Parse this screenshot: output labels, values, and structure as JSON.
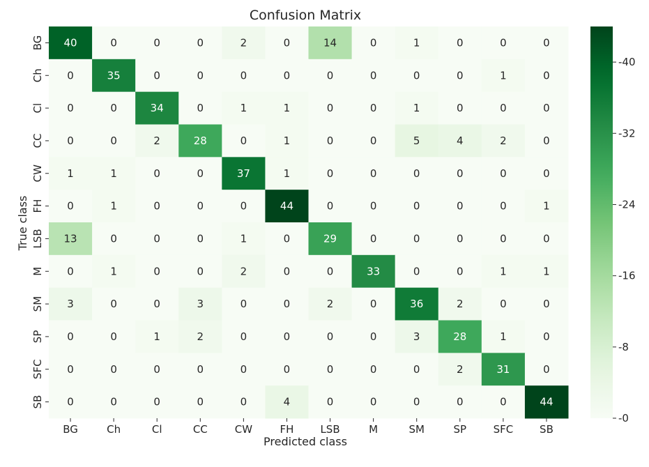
{
  "chart_data": {
    "type": "heatmap",
    "title": "Confusion Matrix",
    "xlabel": "Predicted class",
    "ylabel": "True class",
    "x_categories": [
      "BG",
      "Ch",
      "Cl",
      "CC",
      "CW",
      "FH",
      "LSB",
      "M",
      "SM",
      "SP",
      "SFC",
      "SB"
    ],
    "y_categories": [
      "BG",
      "Ch",
      "Cl",
      "CC",
      "CW",
      "FH",
      "LSB",
      "M",
      "SM",
      "SP",
      "SFC",
      "SB"
    ],
    "values": [
      [
        40,
        0,
        0,
        0,
        2,
        0,
        14,
        0,
        1,
        0,
        0,
        0
      ],
      [
        0,
        35,
        0,
        0,
        0,
        0,
        0,
        0,
        0,
        0,
        1,
        0
      ],
      [
        0,
        0,
        34,
        0,
        1,
        1,
        0,
        0,
        1,
        0,
        0,
        0
      ],
      [
        0,
        0,
        2,
        28,
        0,
        1,
        0,
        0,
        5,
        4,
        2,
        0
      ],
      [
        1,
        1,
        0,
        0,
        37,
        1,
        0,
        0,
        0,
        0,
        0,
        0
      ],
      [
        0,
        1,
        0,
        0,
        0,
        44,
        0,
        0,
        0,
        0,
        0,
        1
      ],
      [
        13,
        0,
        0,
        0,
        1,
        0,
        29,
        0,
        0,
        0,
        0,
        0
      ],
      [
        0,
        1,
        0,
        0,
        2,
        0,
        0,
        33,
        0,
        0,
        1,
        1
      ],
      [
        3,
        0,
        0,
        3,
        0,
        0,
        2,
        0,
        36,
        2,
        0,
        0
      ],
      [
        0,
        0,
        1,
        2,
        0,
        0,
        0,
        0,
        3,
        28,
        1,
        0
      ],
      [
        0,
        0,
        0,
        0,
        0,
        0,
        0,
        0,
        0,
        2,
        31,
        0
      ],
      [
        0,
        0,
        0,
        0,
        0,
        4,
        0,
        0,
        0,
        0,
        0,
        44
      ]
    ],
    "value_range": [
      0,
      44
    ],
    "colormap": "Greens",
    "colorbar_ticks": [
      0,
      8,
      16,
      24,
      32,
      40
    ],
    "colorbar_tick_labels": [
      "0",
      "8",
      "16",
      "24",
      "32",
      "40"
    ],
    "colors": {
      "low": "#f7fcf5",
      "high": "#00441b",
      "text_dark": "#262626",
      "text_light": "#ffffff"
    }
  }
}
